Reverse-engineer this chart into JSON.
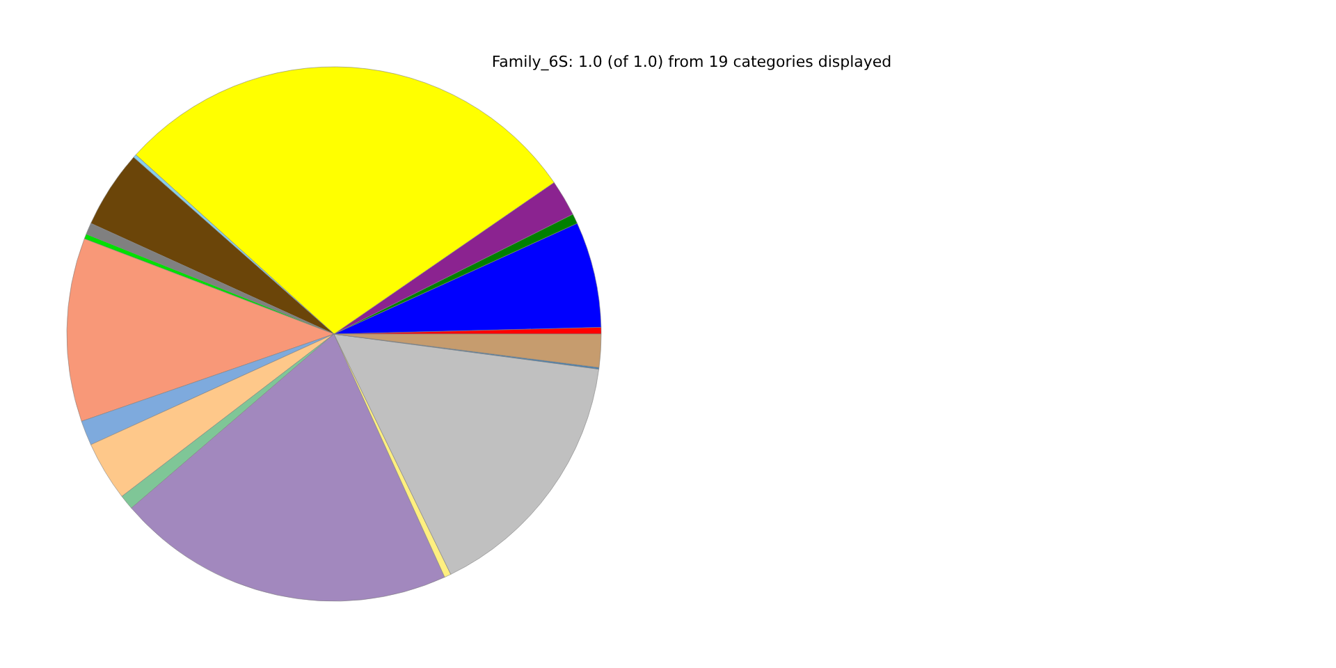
{
  "chart_data": {
    "type": "pie",
    "title": "Family_6S: 1.0 (of 1.0) from 19 categories displayed",
    "categories": [
      null,
      null,
      null,
      null,
      null,
      null,
      null,
      null,
      null,
      null,
      null,
      null,
      null,
      null,
      null,
      null,
      null,
      null
    ],
    "values": [
      0.4,
      6.4,
      0.6,
      2.2,
      28.7,
      0.2,
      4.7,
      0.7,
      0.3,
      11.1,
      1.5,
      3.6,
      0.9,
      20.5,
      0.4,
      15.7,
      0.1,
      2.0
    ],
    "colors": [
      "#ff0000",
      "#0000ff",
      "#008000",
      "#8b2390",
      "#ffff00",
      "#87ceeb",
      "#6b4509",
      "#808080",
      "#00e000",
      "#f89878",
      "#7eaadd",
      "#fec88a",
      "#7fc697",
      "#a288be",
      "#ffef80",
      "#c0c0c0",
      "#4682b4",
      "#c69c6e"
    ]
  }
}
